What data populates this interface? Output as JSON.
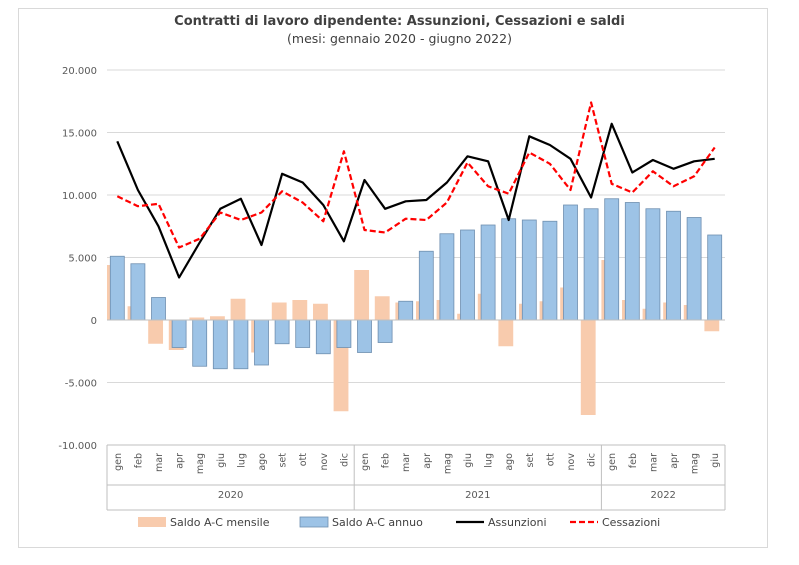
{
  "chart_data": {
    "type": "bar",
    "title": "Contratti di lavoro dipendente: Assunzioni, Cessazioni e saldi",
    "subtitle": "(mesi:  gennaio 2020 - giugno 2022)",
    "ylim": [
      -10000,
      20000
    ],
    "y_ticks": [
      "20.000",
      "15.000",
      "10.000",
      "5.000",
      "0",
      "-5.000",
      "-10.000"
    ],
    "y_tick_values": [
      20000,
      15000,
      10000,
      5000,
      0,
      -5000,
      -10000
    ],
    "grid": true,
    "legend_position": "bottom",
    "categories": [
      "gen",
      "feb",
      "mar",
      "apr",
      "mag",
      "giu",
      "lug",
      "ago",
      "set",
      "ott",
      "nov",
      "dic",
      "gen",
      "feb",
      "mar",
      "apr",
      "mag",
      "giu",
      "lug",
      "ago",
      "set",
      "ott",
      "nov",
      "dic",
      "gen",
      "feb",
      "mar",
      "apr",
      "mag",
      "giu"
    ],
    "year_groups": [
      {
        "label": "2020",
        "count": 12
      },
      {
        "label": "2021",
        "count": 12
      },
      {
        "label": "2022",
        "count": 6
      }
    ],
    "series": [
      {
        "name": "Saldo A-C mensile",
        "kind": "bar",
        "color": "#f8cbad",
        "values": [
          4400,
          1100,
          -1900,
          -2400,
          200,
          300,
          1700,
          -2600,
          1400,
          1600,
          1300,
          -7300,
          4000,
          1900,
          1400,
          1500,
          1600,
          500,
          2100,
          -2100,
          1300,
          1500,
          2600,
          -7600,
          4800,
          1600,
          900,
          1400,
          1200,
          -900
        ]
      },
      {
        "name": "Saldo A-C annuo",
        "kind": "bar",
        "color": "#9dc3e6",
        "values": [
          5100,
          4500,
          1800,
          -2200,
          -3700,
          -3900,
          -3900,
          -3600,
          -1900,
          -2200,
          -2700,
          -2200,
          -2600,
          -1800,
          1500,
          5500,
          6900,
          7200,
          7600,
          8100,
          8000,
          7900,
          9200,
          8900,
          9700,
          9400,
          8900,
          8700,
          8200,
          6800
        ]
      },
      {
        "name": "Assunzioni",
        "kind": "line",
        "color": "#000000",
        "dashed": false,
        "values": [
          14300,
          10400,
          7500,
          3400,
          6200,
          8900,
          9700,
          6000,
          11700,
          11000,
          9200,
          6300,
          11200,
          8900,
          9500,
          9600,
          11000,
          13100,
          12700,
          8000,
          14700,
          14000,
          12900,
          9800,
          15700,
          11800,
          12800,
          12100,
          12700,
          12900
        ]
      },
      {
        "name": "Cessazioni",
        "kind": "line",
        "color": "#ff0000",
        "dashed": true,
        "values": [
          9900,
          9100,
          9300,
          5800,
          6500,
          8600,
          8000,
          8600,
          10300,
          9400,
          7900,
          13500,
          7200,
          7000,
          8100,
          8000,
          9400,
          12600,
          10700,
          10100,
          13400,
          12500,
          10400,
          17400,
          10900,
          10200,
          11900,
          10700,
          11500,
          13800
        ]
      }
    ]
  }
}
